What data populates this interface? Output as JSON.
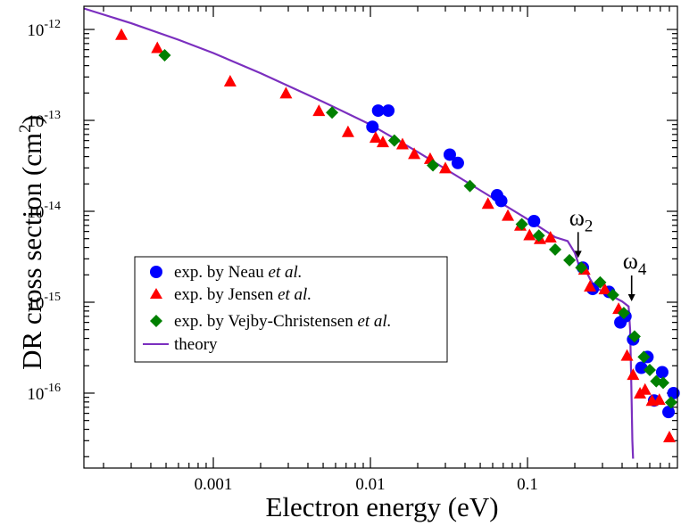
{
  "chart_data": {
    "type": "scatter",
    "xscale": "log",
    "yscale": "log",
    "xlim": [
      0.00015,
      0.9
    ],
    "ylim": [
      1.5e-17,
      1.8e-12
    ],
    "xlabel": "Electron energy (eV)",
    "ylabel_main": "DR cross section (cm",
    "ylabel_sup": "2",
    "ylabel_close": ")",
    "x_ticks": [
      {
        "value": 0.001,
        "label": "0.001"
      },
      {
        "value": 0.01,
        "label": "0.01"
      },
      {
        "value": 0.1,
        "label": "0.1"
      }
    ],
    "y_ticks": [
      {
        "value": 1e-12,
        "base": "10",
        "exp": "-12"
      },
      {
        "value": 1e-13,
        "base": "10",
        "exp": "-13"
      },
      {
        "value": 1e-14,
        "base": "10",
        "exp": "-14"
      },
      {
        "value": 1e-15,
        "base": "10",
        "exp": "-15"
      },
      {
        "value": 1e-16,
        "base": "10",
        "exp": "-16"
      }
    ],
    "series": [
      {
        "name": "Neau",
        "marker": "circle",
        "color": "#0000ff",
        "legend_prefix": "exp. by Neau ",
        "legend_italic": "et al.",
        "points": [
          [
            0.0103,
            8.5e-14
          ],
          [
            0.0112,
            1.28e-13
          ],
          [
            0.013,
            1.28e-13
          ],
          [
            0.032,
            4.2e-14
          ],
          [
            0.036,
            3.4e-14
          ],
          [
            0.064,
            1.5e-14
          ],
          [
            0.068,
            1.3e-14
          ],
          [
            0.11,
            7.8e-15
          ],
          [
            0.225,
            2.4e-15
          ],
          [
            0.26,
            1.4e-15
          ],
          [
            0.33,
            1.3e-15
          ],
          [
            0.39,
            6e-16
          ],
          [
            0.42,
            7e-16
          ],
          [
            0.47,
            3.9e-16
          ],
          [
            0.53,
            1.9e-16
          ],
          [
            0.58,
            2.5e-16
          ],
          [
            0.64,
            8.3e-17
          ],
          [
            0.72,
            1.7e-16
          ],
          [
            0.79,
            6.2e-17
          ],
          [
            0.85,
            1e-16
          ]
        ]
      },
      {
        "name": "Jensen",
        "marker": "triangle",
        "color": "#ff0000",
        "legend_prefix": "exp. by Jensen ",
        "legend_italic": "et al.",
        "points": [
          [
            0.00026,
            8.8e-13
          ],
          [
            0.00044,
            6.3e-13
          ],
          [
            0.00128,
            2.7e-13
          ],
          [
            0.0029,
            2e-13
          ],
          [
            0.0047,
            1.28e-13
          ],
          [
            0.0072,
            7.5e-14
          ],
          [
            0.0108,
            6.5e-14
          ],
          [
            0.012,
            5.8e-14
          ],
          [
            0.016,
            5.5e-14
          ],
          [
            0.019,
            4.3e-14
          ],
          [
            0.024,
            3.8e-14
          ],
          [
            0.03,
            3e-14
          ],
          [
            0.056,
            1.22e-14
          ],
          [
            0.075,
            9e-15
          ],
          [
            0.09,
            7e-15
          ],
          [
            0.103,
            5.5e-15
          ],
          [
            0.12,
            5e-15
          ],
          [
            0.14,
            5.2e-15
          ],
          [
            0.23,
            2.3e-15
          ],
          [
            0.25,
            1.5e-15
          ],
          [
            0.31,
            1.4e-15
          ],
          [
            0.38,
            8.5e-16
          ],
          [
            0.43,
            2.6e-16
          ],
          [
            0.47,
            1.6e-16
          ],
          [
            0.52,
            1e-16
          ],
          [
            0.56,
            1.1e-16
          ],
          [
            0.62,
            8.3e-17
          ],
          [
            0.69,
            8.5e-17
          ],
          [
            0.8,
            3.3e-17
          ]
        ]
      },
      {
        "name": "Vejby-Christensen",
        "marker": "diamond",
        "color": "#008000",
        "legend_prefix": "exp. by Vejby-Christensen ",
        "legend_italic": "et al.",
        "points": [
          [
            0.00049,
            5.2e-13
          ],
          [
            0.0057,
            1.22e-13
          ],
          [
            0.0142,
            6e-14
          ],
          [
            0.025,
            3.2e-14
          ],
          [
            0.043,
            1.9e-14
          ],
          [
            0.092,
            7.2e-15
          ],
          [
            0.118,
            5.4e-15
          ],
          [
            0.15,
            3.8e-15
          ],
          [
            0.185,
            2.9e-15
          ],
          [
            0.22,
            2.4e-15
          ],
          [
            0.29,
            1.65e-15
          ],
          [
            0.35,
            1.2e-15
          ],
          [
            0.41,
            7.6e-16
          ],
          [
            0.48,
            4.2e-16
          ],
          [
            0.55,
            2.5e-16
          ],
          [
            0.6,
            1.8e-16
          ],
          [
            0.66,
            1.35e-16
          ],
          [
            0.73,
            1.3e-16
          ],
          [
            0.82,
            7.9e-17
          ]
        ]
      }
    ],
    "theory": {
      "name": "theory",
      "color": "#7b2fbf",
      "legend_label": "theory",
      "points": [
        [
          0.00015,
          1.7e-12
        ],
        [
          0.0003,
          1.17e-12
        ],
        [
          0.0006,
          7.7e-13
        ],
        [
          0.001,
          5.5e-13
        ],
        [
          0.002,
          3.3e-13
        ],
        [
          0.005,
          1.6e-13
        ],
        [
          0.01,
          9e-14
        ],
        [
          0.02,
          4.5e-14
        ],
        [
          0.05,
          1.7e-14
        ],
        [
          0.1,
          8.2e-15
        ],
        [
          0.15,
          5.2e-15
        ],
        [
          0.18,
          4.7e-15
        ],
        [
          0.2,
          3.5e-15
        ],
        [
          0.21,
          2.7e-15
        ],
        [
          0.225,
          2.6e-15
        ],
        [
          0.25,
          1.8e-15
        ],
        [
          0.27,
          1.45e-15
        ],
        [
          0.3,
          1.32e-15
        ],
        [
          0.35,
          1.15e-15
        ],
        [
          0.4,
          1.02e-15
        ],
        [
          0.44,
          9e-16
        ],
        [
          0.45,
          5e-16
        ],
        [
          0.455,
          2e-16
        ],
        [
          0.46,
          8e-17
        ],
        [
          0.465,
          3e-17
        ],
        [
          0.47,
          1.9e-17
        ]
      ]
    },
    "annotations": [
      {
        "symbol": "ω",
        "sub": "2",
        "x": 0.21,
        "y": 3e-15
      },
      {
        "symbol": "ω",
        "sub": "4",
        "x": 0.46,
        "y": 1e-15
      }
    ]
  }
}
